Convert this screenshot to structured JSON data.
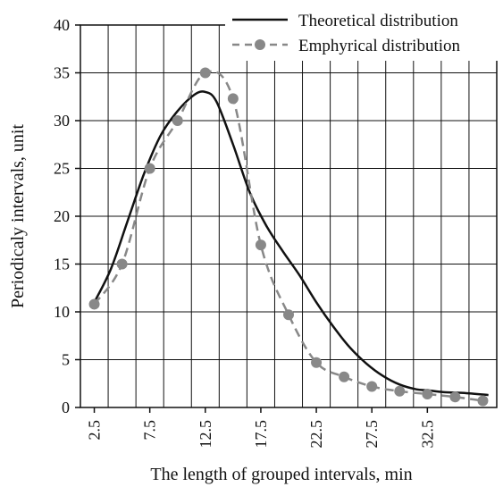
{
  "chart_data": {
    "type": "line",
    "title": "",
    "xlabel": "The length of grouped intervals, min",
    "ylabel": "Periodicaly intervals, unit",
    "ylim": [
      0,
      40
    ],
    "xlim": [
      1.25,
      38.75
    ],
    "yticks": [
      "0",
      "5",
      "10",
      "15",
      "20",
      "25",
      "30",
      "35",
      "40"
    ],
    "xticks": [
      "2.5",
      "7.5",
      "12.5",
      "17.5",
      "22.5",
      "27.5",
      "32.5"
    ],
    "grid": true,
    "legend_position": "top-right",
    "series": [
      {
        "name": "Theoretical distribution",
        "style": "solid",
        "color": "#111111",
        "marker": "none",
        "x": [
          2.5,
          4.0,
          5.5,
          7.0,
          8.5,
          10.0,
          11.5,
          12.5,
          13.5,
          15.0,
          16.5,
          18.0,
          19.5,
          21.0,
          22.5,
          24.0,
          25.5,
          27.0,
          28.5,
          30.0,
          31.5,
          32.5,
          34.0,
          36.0,
          38.0
        ],
        "values": [
          11,
          14.5,
          19.5,
          24.5,
          28.5,
          31,
          32.7,
          33,
          32,
          27.5,
          22.5,
          19,
          16.3,
          13.8,
          11,
          8.5,
          6.3,
          4.6,
          3.3,
          2.4,
          1.9,
          1.8,
          1.6,
          1.5,
          1.3
        ]
      },
      {
        "name": "Emphyrical distribution",
        "style": "dashed",
        "color": "#888888",
        "marker": "circle",
        "x": [
          2.5,
          5.0,
          7.5,
          10.0,
          12.5,
          15.0,
          17.5,
          20.0,
          22.5,
          25.0,
          27.5,
          30.0,
          32.5,
          35.0,
          37.5
        ],
        "values": [
          10.8,
          15,
          25,
          30,
          35,
          32.3,
          17,
          9.7,
          4.7,
          3.2,
          2.2,
          1.7,
          1.4,
          1.1,
          0.7
        ]
      }
    ]
  }
}
